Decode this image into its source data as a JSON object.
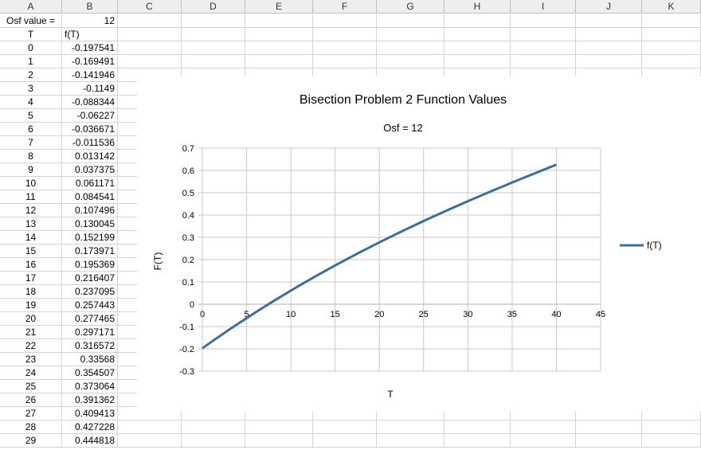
{
  "columns": [
    "A",
    "B",
    "C",
    "D",
    "E",
    "F",
    "G",
    "H",
    "I",
    "J",
    "K"
  ],
  "sheet": {
    "label_a1": "Osf value =",
    "value_b1": "12",
    "header_a2": "T",
    "header_b2": "f(T)",
    "rows": [
      {
        "t": "0",
        "f": "-0.197541"
      },
      {
        "t": "1",
        "f": "-0.169491"
      },
      {
        "t": "2",
        "f": "-0.141946"
      },
      {
        "t": "3",
        "f": "-0.1149"
      },
      {
        "t": "4",
        "f": "-0.088344"
      },
      {
        "t": "5",
        "f": "-0.06227"
      },
      {
        "t": "6",
        "f": "-0.036671"
      },
      {
        "t": "7",
        "f": "-0.011536"
      },
      {
        "t": "8",
        "f": "0.013142"
      },
      {
        "t": "9",
        "f": "0.037375"
      },
      {
        "t": "10",
        "f": "0.061171"
      },
      {
        "t": "11",
        "f": "0.084541"
      },
      {
        "t": "12",
        "f": "0.107496"
      },
      {
        "t": "13",
        "f": "0.130045"
      },
      {
        "t": "14",
        "f": "0.152199"
      },
      {
        "t": "15",
        "f": "0.173971"
      },
      {
        "t": "16",
        "f": "0.195369"
      },
      {
        "t": "17",
        "f": "0.216407"
      },
      {
        "t": "18",
        "f": "0.237095"
      },
      {
        "t": "19",
        "f": "0.257443"
      },
      {
        "t": "20",
        "f": "0.277465"
      },
      {
        "t": "21",
        "f": "0.297171"
      },
      {
        "t": "22",
        "f": "0.316572"
      },
      {
        "t": "23",
        "f": "0.33568"
      },
      {
        "t": "24",
        "f": "0.354507"
      },
      {
        "t": "25",
        "f": "0.373064"
      },
      {
        "t": "26",
        "f": "0.391362"
      },
      {
        "t": "27",
        "f": "0.409413"
      },
      {
        "t": "28",
        "f": "0.427228"
      },
      {
        "t": "29",
        "f": "0.444818"
      }
    ]
  },
  "chart_data": {
    "type": "line",
    "title": "Bisection Problem 2 Function Values",
    "subtitle": "Osf = 12",
    "xlabel": "T",
    "ylabel": "F(T)",
    "xlim": [
      0,
      45
    ],
    "ylim": [
      -0.3,
      0.7
    ],
    "xticks": [
      "0",
      "5",
      "10",
      "15",
      "20",
      "25",
      "30",
      "35",
      "40",
      "45"
    ],
    "yticks": [
      "0.7",
      "0.6",
      "0.5",
      "0.4",
      "0.3",
      "0.2",
      "0.1",
      "0",
      "-0.1",
      "-0.2",
      "-0.3"
    ],
    "grid": true,
    "legend_position": "right",
    "series": [
      {
        "name": "f(T)",
        "color": "#3f6e99",
        "x": [
          0,
          1,
          2,
          3,
          4,
          5,
          6,
          7,
          8,
          9,
          10,
          11,
          12,
          13,
          14,
          15,
          16,
          17,
          18,
          19,
          20,
          21,
          22,
          23,
          24,
          25,
          26,
          27,
          28,
          29,
          30,
          31,
          32,
          33,
          34,
          35,
          36,
          37,
          38,
          39,
          40
        ],
        "y": [
          -0.197541,
          -0.169491,
          -0.141946,
          -0.1149,
          -0.088344,
          -0.06227,
          -0.036671,
          -0.011536,
          0.013142,
          0.037375,
          0.061171,
          0.084541,
          0.107496,
          0.130045,
          0.152199,
          0.173971,
          0.195369,
          0.216407,
          0.237095,
          0.257443,
          0.277465,
          0.297171,
          0.316572,
          0.33568,
          0.354507,
          0.373064,
          0.391362,
          0.409413,
          0.427228,
          0.444818,
          0.462,
          0.479,
          0.496,
          0.513,
          0.529,
          0.546,
          0.562,
          0.578,
          0.594,
          0.61,
          0.626
        ]
      }
    ]
  }
}
